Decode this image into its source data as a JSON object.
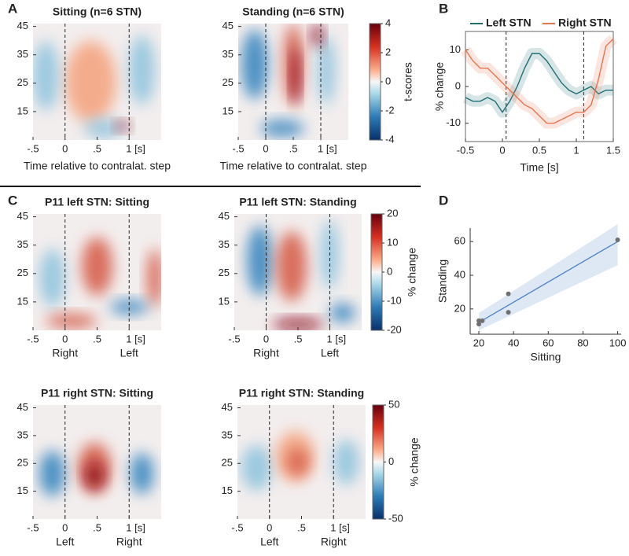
{
  "panel_labels": [
    "A",
    "B",
    "C",
    "D"
  ],
  "chart_data": [
    {
      "type": "heatmap",
      "title": "Sitting (n=6 STN)",
      "xlabel": "Time relative to contralat. step",
      "xlim": [
        -0.5,
        1.5
      ],
      "ylim": [
        5,
        46
      ],
      "xticks": [
        {
          "value": -0.5,
          "label": "-.5"
        },
        0,
        {
          "value": 0.5,
          "label": ".5"
        },
        {
          "value": 1,
          "label": "1 [s]"
        }
      ],
      "yticks": [
        15,
        25,
        35,
        45
      ],
      "event_lines": [
        0,
        1
      ]
    },
    {
      "type": "heatmap",
      "title": "Standing (n=6 STN)",
      "xlabel": "Time relative to contralat. step",
      "xlim": [
        -0.5,
        1.5
      ],
      "ylim": [
        5,
        46
      ],
      "xticks": [
        {
          "value": -0.5,
          "label": "-.5"
        },
        0,
        {
          "value": 0.5,
          "label": ".5"
        },
        {
          "value": 1,
          "label": "1 [s]"
        }
      ],
      "yticks": [
        15,
        25,
        35,
        45
      ],
      "event_lines": [
        0,
        1
      ],
      "clabel": "t-scores",
      "clim": [
        -4,
        4
      ],
      "cticks": [
        -4,
        -2,
        0,
        2,
        4
      ]
    },
    {
      "type": "line",
      "xlabel": "Time [s]",
      "ylabel": "% change",
      "x": [
        -0.5,
        -0.4,
        -0.3,
        -0.2,
        -0.1,
        0,
        0.1,
        0.2,
        0.3,
        0.4,
        0.5,
        0.6,
        0.7,
        0.8,
        0.9,
        1.0,
        1.1,
        1.2,
        1.3,
        1.4,
        1.5
      ],
      "xlim": [
        -0.5,
        1.5
      ],
      "ylim": [
        -15,
        15
      ],
      "xticks": [
        -0.5,
        0,
        0.5,
        1,
        1.5
      ],
      "yticks": [
        -10,
        0,
        10
      ],
      "event_lines": [
        0.05,
        1.1
      ],
      "series": [
        {
          "name": "Left STN",
          "color": "#1f6e74",
          "values": [
            -3,
            -4,
            -4,
            -3,
            -4,
            -7,
            -4,
            0,
            5,
            9,
            9,
            7,
            4,
            1,
            -1,
            -2,
            -1,
            0,
            -2,
            -1,
            -1
          ]
        },
        {
          "name": "Right STN",
          "color": "#e8744f",
          "values": [
            10,
            7,
            5,
            5,
            3,
            1,
            -1,
            -3,
            -5,
            -6,
            -8,
            -10,
            -10,
            -9,
            -8,
            -7,
            -7,
            -5,
            2,
            11,
            13
          ]
        }
      ]
    },
    {
      "type": "heatmap",
      "title": "P11 left STN: Sitting",
      "xlim": [
        -0.5,
        1.5
      ],
      "ylim": [
        5,
        46
      ],
      "xticks": [
        {
          "value": -0.5,
          "label": "-.5"
        },
        0,
        {
          "value": 0.5,
          "label": ".5"
        },
        {
          "value": 1,
          "label": "1 [s]"
        }
      ],
      "yticks": [
        15,
        25,
        35,
        45
      ],
      "event_lines": [
        0,
        1
      ],
      "event_labels": [
        "Right",
        "Left"
      ]
    },
    {
      "type": "heatmap",
      "title": "P11 left STN: Standing",
      "xlim": [
        -0.5,
        1.5
      ],
      "ylim": [
        5,
        46
      ],
      "xticks": [
        {
          "value": -0.5,
          "label": "-.5"
        },
        0,
        {
          "value": 0.5,
          "label": ".5"
        },
        {
          "value": 1,
          "label": "1 [s]"
        }
      ],
      "yticks": [
        15,
        25,
        35,
        45
      ],
      "event_lines": [
        0,
        1
      ],
      "event_labels": [
        "Right",
        "Left"
      ],
      "clabel": "% change",
      "clim": [
        -20,
        20
      ],
      "cticks": [
        -20,
        -10,
        0,
        10,
        20
      ]
    },
    {
      "type": "heatmap",
      "title": "P11 right STN: Sitting",
      "xlim": [
        -0.5,
        1.5
      ],
      "ylim": [
        5,
        46
      ],
      "xticks": [
        {
          "value": -0.5,
          "label": "-.5"
        },
        0,
        {
          "value": 0.5,
          "label": ".5"
        },
        {
          "value": 1,
          "label": "1 [s]"
        }
      ],
      "yticks": [
        15,
        25,
        35,
        45
      ],
      "event_lines": [
        0,
        1
      ],
      "event_labels": [
        "Left",
        "Right"
      ]
    },
    {
      "type": "heatmap",
      "title": "P11 right STN: Standing",
      "xlim": [
        -0.5,
        1.5
      ],
      "ylim": [
        5,
        46
      ],
      "xticks": [
        {
          "value": -0.5,
          "label": "-.5"
        },
        0,
        {
          "value": 0.5,
          "label": ".5"
        },
        {
          "value": 1,
          "label": "1 [s]"
        }
      ],
      "yticks": [
        15,
        25,
        35,
        45
      ],
      "event_lines": [
        0,
        1
      ],
      "event_labels": [
        "Left",
        "Right"
      ],
      "clabel": "% change",
      "clim": [
        -50,
        50
      ],
      "cticks": [
        -50,
        0,
        50
      ]
    },
    {
      "type": "scatter",
      "xlabel": "Sitting",
      "ylabel": "Standing",
      "x": [
        20,
        20,
        22,
        37,
        37,
        100
      ],
      "values": [
        11,
        13,
        13,
        29,
        18,
        61
      ],
      "color": "#707070",
      "fit_x": [
        20,
        100
      ],
      "fit_y": [
        12,
        60
      ],
      "fit_color": "#4a7fc8",
      "xlim": [
        15,
        102
      ],
      "ylim": [
        5,
        68
      ],
      "xticks": [
        20,
        40,
        60,
        80,
        100
      ],
      "yticks": [
        20,
        40,
        60
      ]
    }
  ]
}
